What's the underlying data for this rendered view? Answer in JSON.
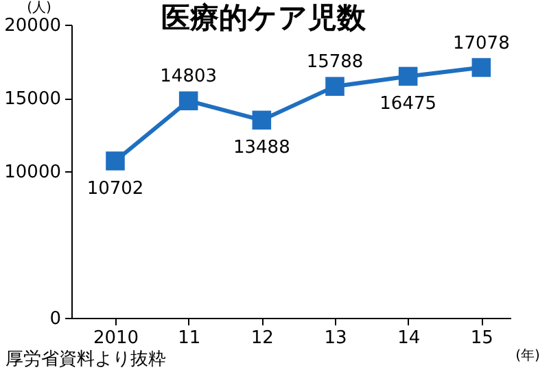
{
  "chart_data": {
    "type": "line",
    "title": "医療的ケア児数",
    "ylabel": "(人)",
    "xlabel": "(年)",
    "annotations": [
      "厚労省資料より抜粋"
    ],
    "categories": [
      "2010",
      "11",
      "12",
      "13",
      "14",
      "15"
    ],
    "series": [
      {
        "color": "#1f6fc0",
        "values": [
          10702,
          14803,
          13488,
          15788,
          16475,
          17078
        ]
      }
    ],
    "ylim": [
      0,
      20000
    ],
    "yticks": [
      0,
      {
        "value": 10000,
        "label": "10000"
      },
      {
        "value": 15000,
        "label": "15000"
      },
      {
        "value": 20000,
        "label": "20000"
      }
    ],
    "marker": "square",
    "line_style": "solid",
    "data_labels": true,
    "grid": false,
    "legend": false
  }
}
